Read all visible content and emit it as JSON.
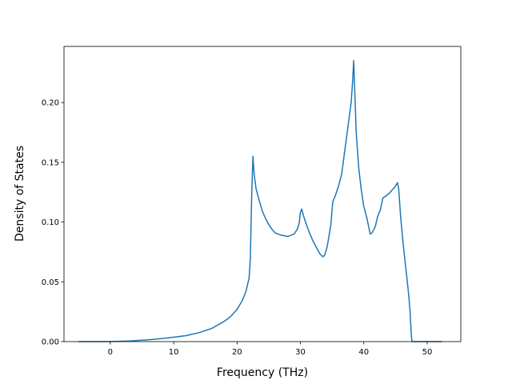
{
  "chart_data": {
    "type": "line",
    "title": "",
    "xlabel": "Frequency (THz)",
    "ylabel": "Density of States",
    "xlim": [
      -7.3,
      55.3
    ],
    "ylim": [
      0.0,
      0.247
    ],
    "x_ticks": [
      0,
      10,
      20,
      30,
      40,
      50
    ],
    "y_ticks": [
      0.0,
      0.05,
      0.1,
      0.15,
      0.2
    ],
    "x_tick_labels": [
      "0",
      "10",
      "20",
      "30",
      "40",
      "50"
    ],
    "y_tick_labels": [
      "0.00",
      "0.05",
      "0.10",
      "0.15",
      "0.20"
    ],
    "grid": false,
    "legend": false,
    "series": [
      {
        "color": "#1f77b4",
        "x": [
          -5,
          -3,
          0,
          3,
          6,
          9,
          12,
          14,
          16,
          18,
          19,
          20,
          20.8,
          21.4,
          21.9,
          22.1,
          22.3,
          22.5,
          22.7,
          23.0,
          23.5,
          24,
          24.5,
          25,
          25.5,
          26,
          27,
          28,
          29,
          29.5,
          29.8,
          30.0,
          30.2,
          30.5,
          31,
          31.5,
          32,
          32.5,
          33,
          33.5,
          33.8,
          34.2,
          34.5,
          34.8,
          35.1,
          35.5,
          36,
          36.5,
          37,
          37.5,
          38,
          38.2,
          38.4,
          38.6,
          38.8,
          39.2,
          39.6,
          40,
          40.5,
          41,
          41.3,
          41.8,
          42.2,
          42.6,
          43,
          43.5,
          44,
          44.5,
          45,
          45.3,
          45.5,
          45.8,
          46.2,
          46.7,
          47.1,
          47.3,
          47.5,
          47.6,
          48,
          50,
          52.3
        ],
        "y": [
          0.0,
          0.0,
          0.0,
          0.0005,
          0.0015,
          0.003,
          0.005,
          0.0075,
          0.011,
          0.017,
          0.021,
          0.027,
          0.034,
          0.042,
          0.053,
          0.07,
          0.12,
          0.155,
          0.14,
          0.128,
          0.118,
          0.109,
          0.103,
          0.098,
          0.094,
          0.091,
          0.089,
          0.088,
          0.09,
          0.094,
          0.099,
          0.108,
          0.111,
          0.105,
          0.097,
          0.09,
          0.084,
          0.079,
          0.074,
          0.071,
          0.072,
          0.079,
          0.088,
          0.098,
          0.117,
          0.122,
          0.13,
          0.14,
          0.16,
          0.18,
          0.2,
          0.215,
          0.235,
          0.205,
          0.175,
          0.145,
          0.127,
          0.113,
          0.103,
          0.09,
          0.091,
          0.096,
          0.105,
          0.11,
          0.12,
          0.122,
          0.124,
          0.127,
          0.13,
          0.133,
          0.128,
          0.105,
          0.082,
          0.058,
          0.038,
          0.025,
          0.005,
          0.0,
          0.0,
          0.0,
          0.0
        ]
      }
    ]
  }
}
